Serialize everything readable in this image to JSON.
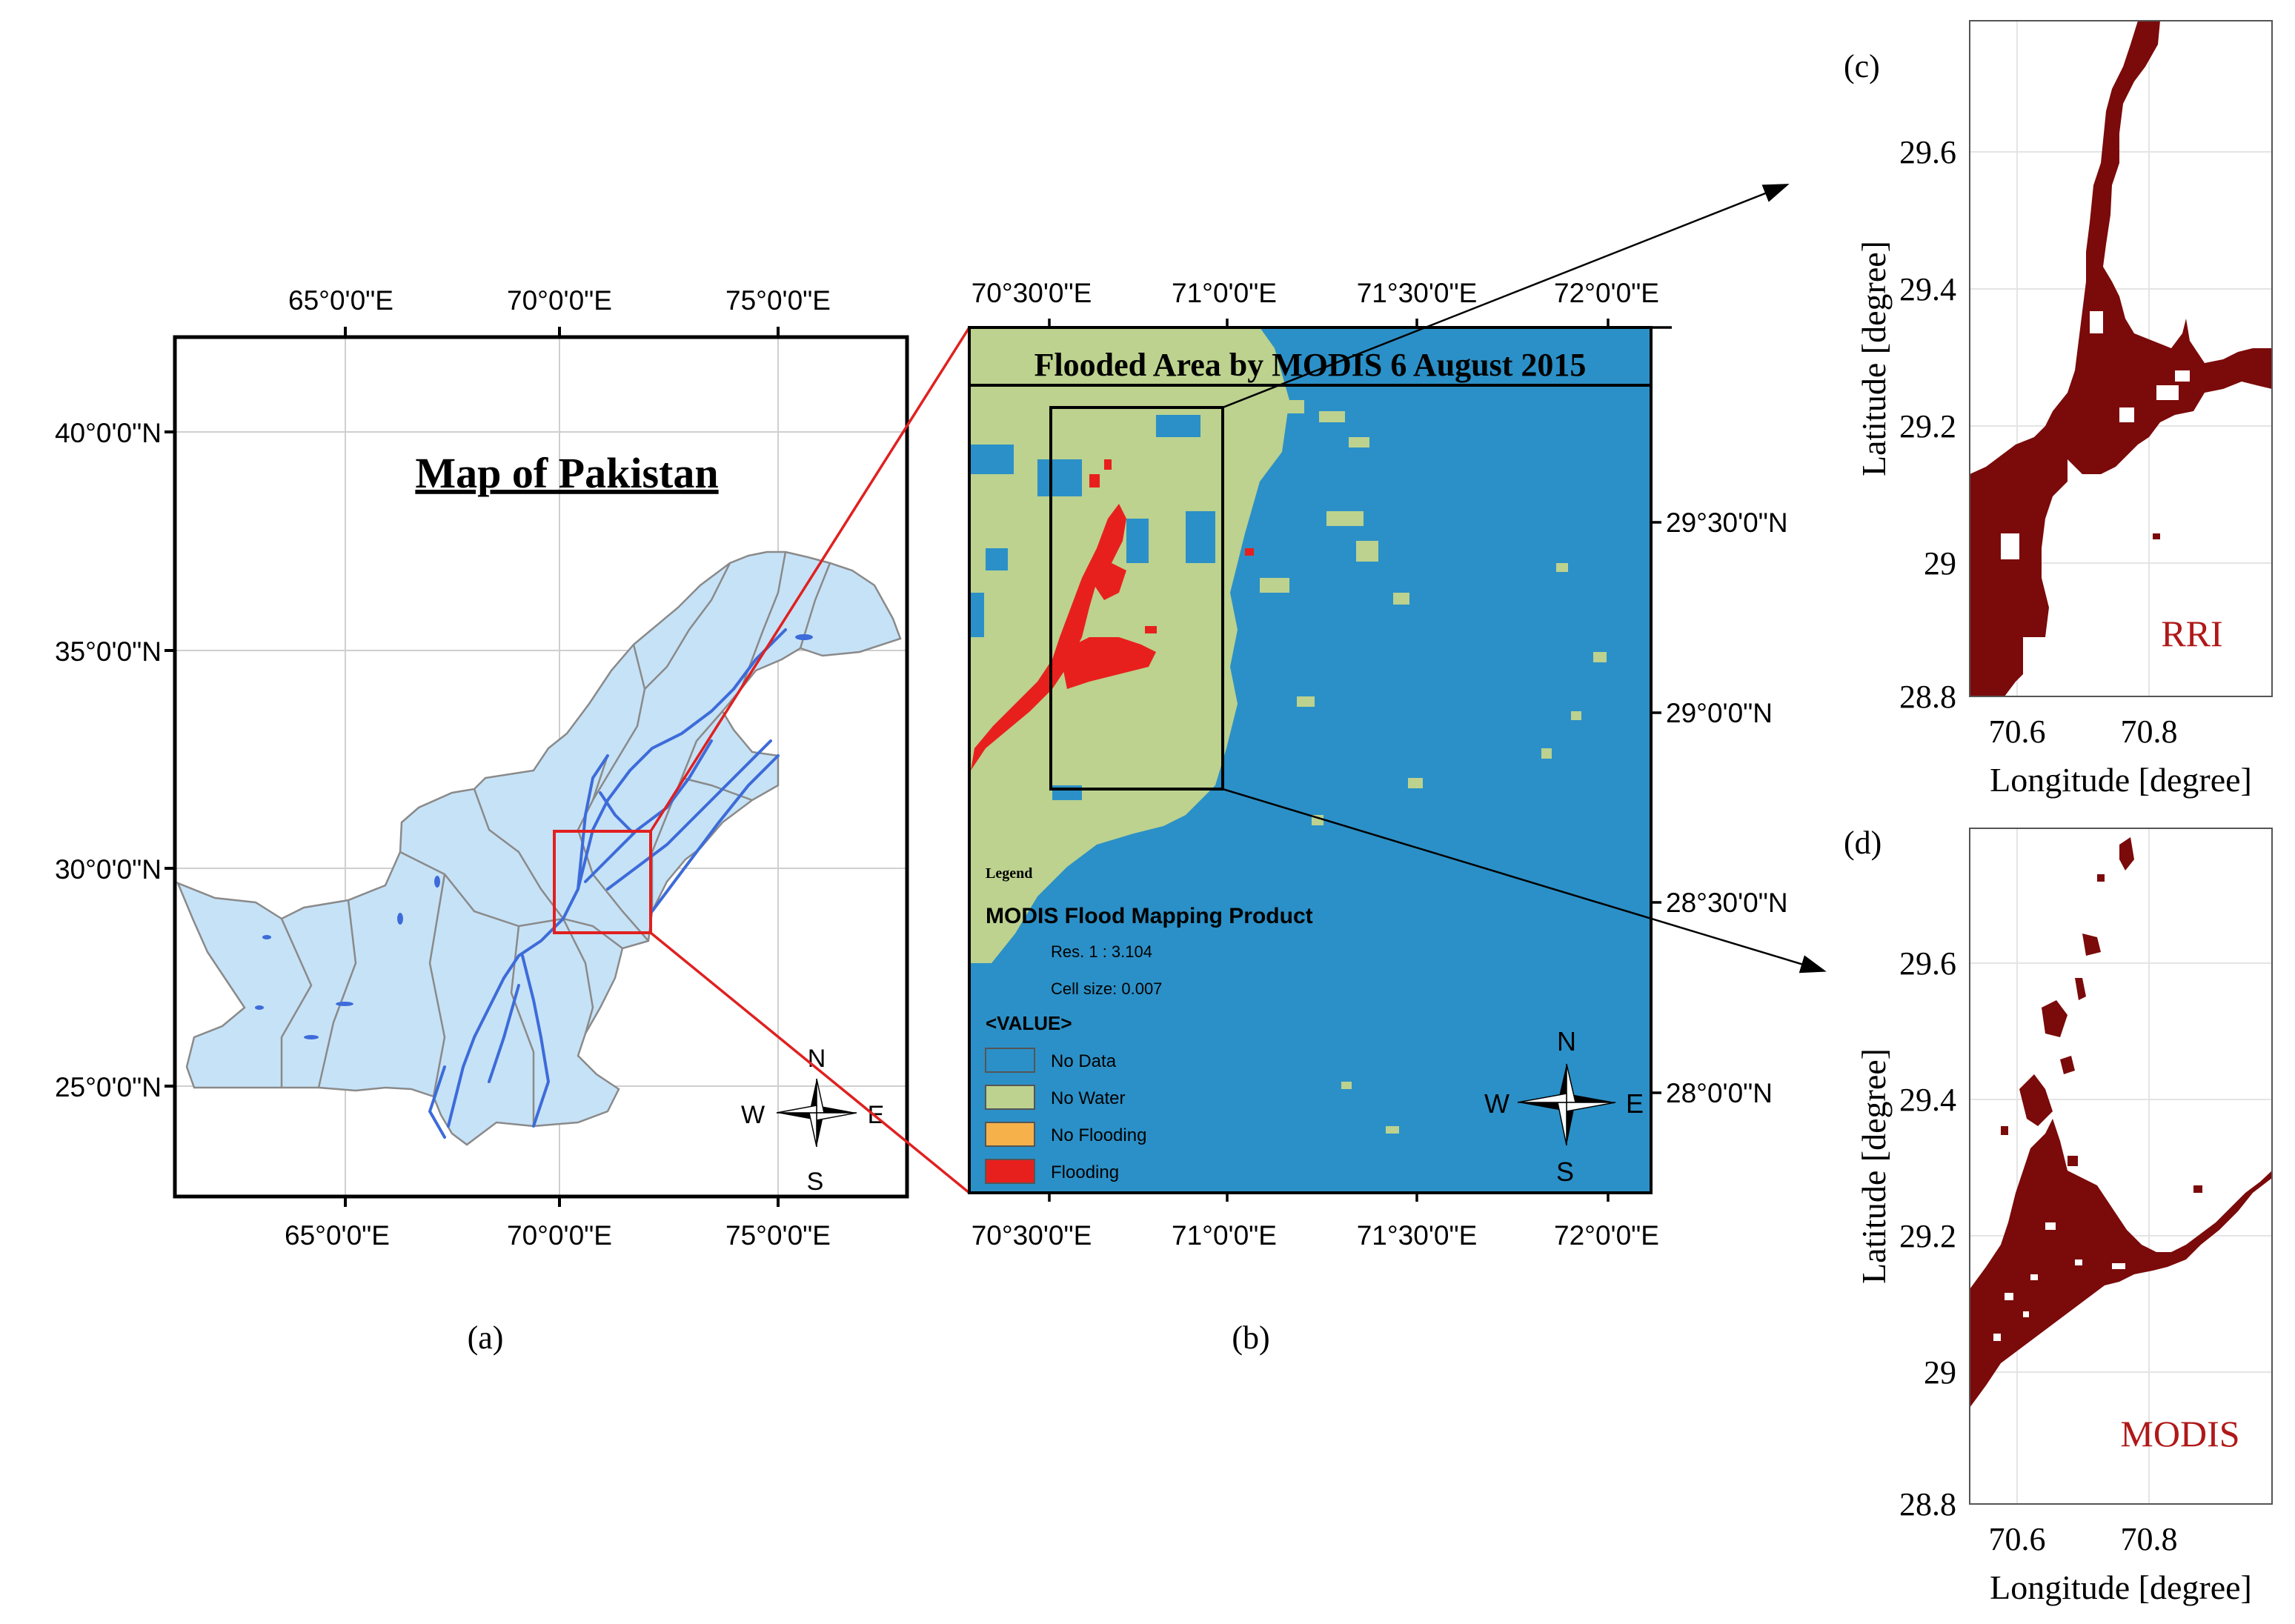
{
  "colors": {
    "pakistan_fill": "#c6e2f7",
    "boundary": "#8a8a8a",
    "river": "#3d6bd9",
    "no_data": "#2b90c7",
    "no_water": "#bcd28e",
    "no_flooding": "#f6b14a",
    "flooding": "#e8201d",
    "model_fill": "#7b0a0a",
    "label_red": "#b01818",
    "connector_red": "#e02020"
  },
  "panel_a": {
    "title": "Map of Pakistan",
    "caption": "(a)",
    "lon_ticks": [
      "65°0'0\"E",
      "70°0'0\"E",
      "75°0'0\"E"
    ],
    "lat_ticks": [
      "40°0'0\"N",
      "35°0'0\"N",
      "30°0'0\"N",
      "25°0'0\"N"
    ],
    "compass": {
      "n": "N",
      "s": "S",
      "e": "E",
      "w": "W"
    }
  },
  "panel_b": {
    "title": "Flooded Area by MODIS 6 August 2015",
    "caption": "(b)",
    "lon_ticks": [
      "70°30'0\"E",
      "71°0'0\"E",
      "71°30'0\"E",
      "72°0'0\"E"
    ],
    "lat_ticks": [
      "29°30'0\"N",
      "29°0'0\"N",
      "28°30'0\"N",
      "28°0'0\"N"
    ],
    "legend": {
      "heading": "Legend",
      "product": "MODIS Flood Mapping Product",
      "res": "Res. 1 : 3.104",
      "cell": "Cell size: 0.007",
      "value_label": "<VALUE>",
      "items": [
        "No Data",
        "No Water",
        "No Flooding",
        "Flooding"
      ]
    },
    "compass": {
      "n": "N",
      "s": "S",
      "e": "E",
      "w": "W"
    }
  },
  "panel_c": {
    "label": "(c)",
    "model": "RRI",
    "xlabel": "Longitude [degree]",
    "ylabel": "Latitude [degree]",
    "xticks": [
      "70.6",
      "70.8"
    ],
    "yticks": [
      "29.6",
      "29.4",
      "29.2",
      "29",
      "28.8"
    ]
  },
  "panel_d": {
    "label": "(d)",
    "model": "MODIS",
    "xlabel": "Longitude [degree]",
    "ylabel": "Latitude [degree]",
    "xticks": [
      "70.6",
      "70.8"
    ],
    "yticks": [
      "29.6",
      "29.4",
      "29.2",
      "29",
      "28.8"
    ]
  }
}
